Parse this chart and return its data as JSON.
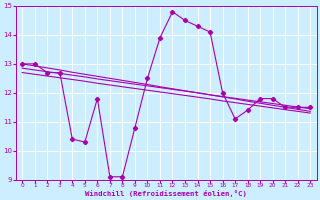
{
  "bg_color": "#cceeff",
  "line_color": "#aa00aa",
  "xlim_min": -0.5,
  "xlim_max": 23.5,
  "ylim_min": 9,
  "ylim_max": 15,
  "xticks": [
    0,
    1,
    2,
    3,
    4,
    5,
    6,
    7,
    8,
    9,
    10,
    11,
    12,
    13,
    14,
    15,
    16,
    17,
    18,
    19,
    20,
    21,
    22,
    23
  ],
  "yticks": [
    9,
    10,
    11,
    12,
    13,
    14,
    15
  ],
  "xlabel": "Windchill (Refroidissement éolien,°C)",
  "windchill": {
    "x": [
      0,
      1,
      2,
      3,
      4,
      5,
      6,
      7,
      8,
      9,
      10,
      11,
      12,
      13,
      14,
      15,
      16,
      17,
      18,
      19,
      20,
      21,
      22,
      23
    ],
    "y": [
      13.0,
      13.0,
      12.7,
      12.7,
      10.4,
      10.3,
      11.8,
      9.1,
      9.1,
      10.8,
      12.5,
      13.9,
      14.8,
      14.5,
      14.3,
      14.1,
      12.0,
      11.1,
      11.4,
      11.8,
      11.8,
      11.5,
      11.5,
      11.5
    ]
  },
  "line1": {
    "x": [
      0,
      1,
      2,
      3,
      4,
      5,
      6,
      7,
      8,
      9,
      10,
      11,
      12,
      13,
      14,
      15,
      16,
      17,
      18,
      19,
      20,
      21,
      22,
      23
    ],
    "y": [
      13.0,
      12.93,
      12.86,
      12.79,
      12.71,
      12.64,
      12.57,
      12.5,
      12.43,
      12.36,
      12.29,
      12.21,
      12.14,
      12.07,
      12.0,
      11.93,
      11.86,
      11.79,
      11.71,
      11.64,
      11.57,
      11.5,
      11.43,
      11.36
    ]
  },
  "line2": {
    "x": [
      0,
      1,
      2,
      3,
      4,
      5,
      6,
      7,
      8,
      9,
      10,
      11,
      12,
      13,
      14,
      15,
      16,
      17,
      18,
      19,
      20,
      21,
      22,
      23
    ],
    "y": [
      12.85,
      12.79,
      12.73,
      12.67,
      12.61,
      12.55,
      12.48,
      12.42,
      12.36,
      12.3,
      12.24,
      12.18,
      12.12,
      12.06,
      12.0,
      11.93,
      11.87,
      11.81,
      11.75,
      11.69,
      11.63,
      11.57,
      11.51,
      11.45
    ]
  },
  "line3": {
    "x": [
      0,
      1,
      2,
      3,
      4,
      5,
      6,
      7,
      8,
      9,
      10,
      11,
      12,
      13,
      14,
      15,
      16,
      17,
      18,
      19,
      20,
      21,
      22,
      23
    ],
    "y": [
      12.7,
      12.64,
      12.58,
      12.52,
      12.46,
      12.4,
      12.33,
      12.27,
      12.21,
      12.15,
      12.09,
      12.03,
      11.97,
      11.91,
      11.85,
      11.79,
      11.72,
      11.66,
      11.6,
      11.54,
      11.48,
      11.42,
      11.36,
      11.3
    ]
  }
}
